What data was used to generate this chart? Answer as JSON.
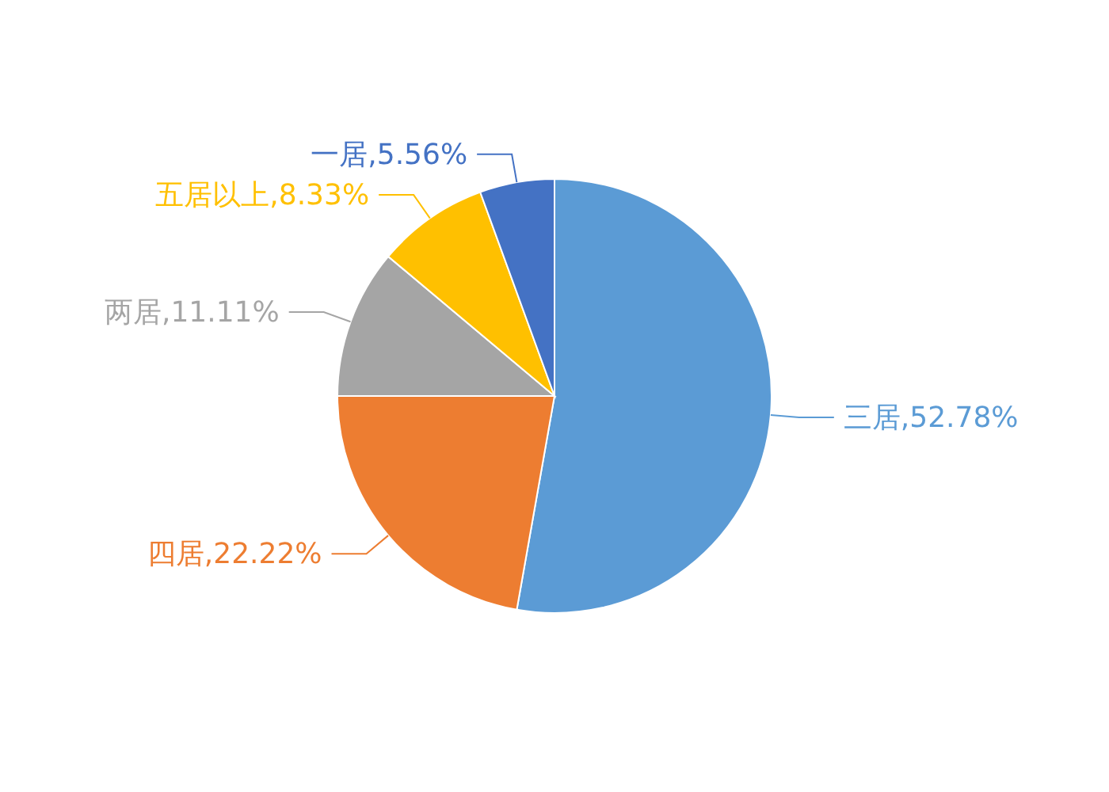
{
  "chart_data": {
    "type": "pie",
    "categories": [
      "三居",
      "四居",
      "两居",
      "五居以上",
      "一居"
    ],
    "values": [
      52.78,
      22.22,
      11.11,
      8.33,
      5.56
    ],
    "value_labels": [
      "52.78%",
      "22.22%",
      "11.11%",
      "8.33%",
      "5.56%"
    ],
    "colors": [
      "#5b9bd5",
      "#ed7d31",
      "#a5a5a5",
      "#ffc000",
      "#4472c4"
    ]
  }
}
